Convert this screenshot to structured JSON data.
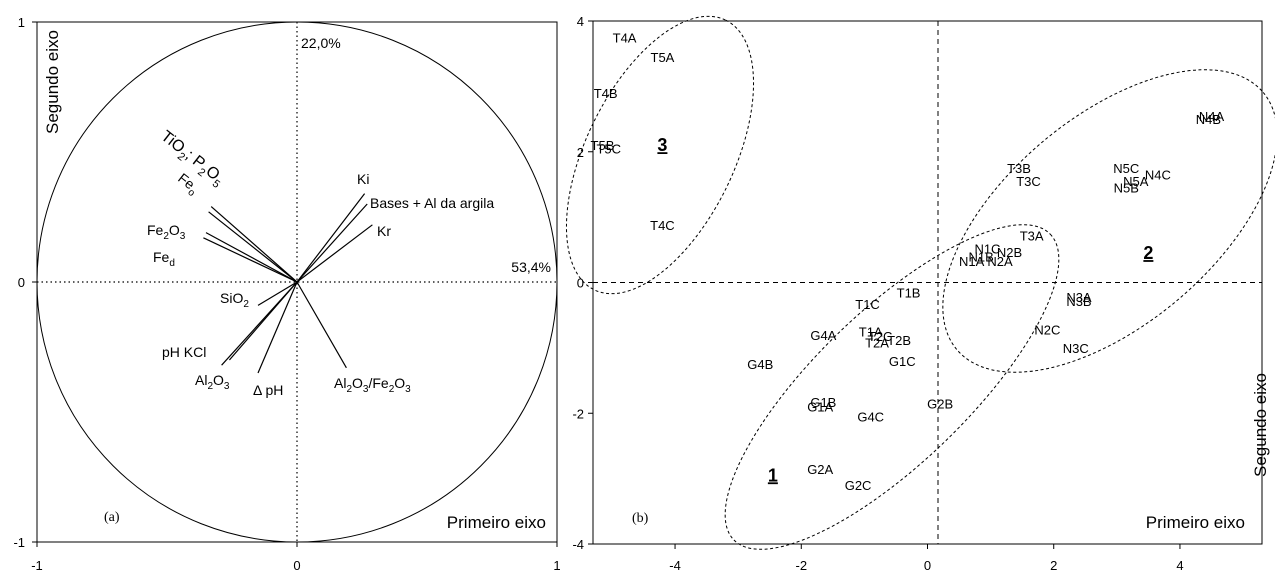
{
  "chart_data": [
    {
      "type": "correlation-circle",
      "panel_label": "(a)",
      "xlabel": "Primeiro eixo",
      "ylabel": "Segundo eixo",
      "xlim": [
        -1,
        1
      ],
      "ylim": [
        -1,
        1
      ],
      "xticks": [
        "-1",
        "0",
        "1"
      ],
      "yticks": [
        "-1",
        "0",
        "1"
      ],
      "axis1_variance": "53,4%",
      "axis2_variance": "22,0%",
      "vectors": [
        {
          "id": "ki",
          "label": "Ki",
          "x": 0.26,
          "y": 0.34
        },
        {
          "id": "bases",
          "label": "Bases + Al da argila",
          "x": 0.27,
          "y": 0.3
        },
        {
          "id": "kr",
          "label": "Kr",
          "x": 0.29,
          "y": 0.22
        },
        {
          "id": "tio2",
          "label": "TiO2; P2O5",
          "x": -0.33,
          "y": 0.29
        },
        {
          "id": "feo",
          "label": "Feo",
          "x": -0.34,
          "y": 0.27
        },
        {
          "id": "fe2o3",
          "label": "Fe2O3",
          "x": -0.35,
          "y": 0.19
        },
        {
          "id": "fed",
          "label": "Fed",
          "x": -0.36,
          "y": 0.17
        },
        {
          "id": "sio2",
          "label": "SiO2",
          "x": -0.15,
          "y": -0.09
        },
        {
          "id": "phkcl",
          "label": "pH KCl",
          "x": -0.26,
          "y": -0.3
        },
        {
          "id": "al2o3",
          "label": "Al2O3",
          "x": -0.29,
          "y": -0.32
        },
        {
          "id": "dph",
          "label": "Δ pH",
          "x": -0.15,
          "y": -0.35
        },
        {
          "id": "alfe",
          "label": "Al2O3/Fe2O3",
          "x": 0.19,
          "y": -0.33
        }
      ]
    },
    {
      "type": "scatter",
      "panel_label": "(b)",
      "xlabel": "Primeiro eixo",
      "ylabel": "Segundo eixo",
      "xlim": [
        -5.3,
        5.3
      ],
      "ylim": [
        -4,
        4
      ],
      "xticks": [
        "-4",
        "-2",
        "0",
        "2",
        "4"
      ],
      "yticks": [
        "-4",
        "-2",
        "0",
        "2",
        "4"
      ],
      "points": [
        {
          "label": "T4A",
          "x": -4.8,
          "y": 3.75
        },
        {
          "label": "T5A",
          "x": -4.2,
          "y": 3.45
        },
        {
          "label": "T4B",
          "x": -5.1,
          "y": 2.9
        },
        {
          "label": "T5B",
          "x": -5.15,
          "y": 2.1
        },
        {
          "label": "T5C",
          "x": -5.05,
          "y": 2.05
        },
        {
          "label": "T4C",
          "x": -4.2,
          "y": 0.88
        },
        {
          "label": "T3B",
          "x": 1.45,
          "y": 1.75
        },
        {
          "label": "T3C",
          "x": 1.6,
          "y": 1.55
        },
        {
          "label": "T3A",
          "x": 1.65,
          "y": 0.72
        },
        {
          "label": "N1C",
          "x": 0.95,
          "y": 0.52
        },
        {
          "label": "N1A",
          "x": 0.7,
          "y": 0.33
        },
        {
          "label": "N1B",
          "x": 0.85,
          "y": 0.4
        },
        {
          "label": "N2B",
          "x": 1.3,
          "y": 0.47
        },
        {
          "label": "N2A",
          "x": 1.15,
          "y": 0.33
        },
        {
          "label": "N5C",
          "x": 3.15,
          "y": 1.75
        },
        {
          "label": "N4C",
          "x": 3.65,
          "y": 1.65
        },
        {
          "label": "N5A",
          "x": 3.3,
          "y": 1.55
        },
        {
          "label": "N5B",
          "x": 3.15,
          "y": 1.45
        },
        {
          "label": "N4A",
          "x": 4.5,
          "y": 2.55
        },
        {
          "label": "N4B",
          "x": 4.45,
          "y": 2.5
        },
        {
          "label": "N3A",
          "x": 2.4,
          "y": -0.22
        },
        {
          "label": "N3B",
          "x": 2.4,
          "y": -0.28
        },
        {
          "label": "N2C",
          "x": 1.9,
          "y": -0.72
        },
        {
          "label": "N3C",
          "x": 2.35,
          "y": -1.0
        },
        {
          "label": "T1B",
          "x": -0.3,
          "y": -0.15
        },
        {
          "label": "T1C",
          "x": -0.95,
          "y": -0.33
        },
        {
          "label": "T1A",
          "x": -0.9,
          "y": -0.75
        },
        {
          "label": "T2C",
          "x": -0.75,
          "y": -0.82
        },
        {
          "label": "T2A",
          "x": -0.8,
          "y": -0.92
        },
        {
          "label": "T2B",
          "x": -0.45,
          "y": -0.88
        },
        {
          "label": "G4A",
          "x": -1.65,
          "y": -0.8
        },
        {
          "label": "G1C",
          "x": -0.4,
          "y": -1.2
        },
        {
          "label": "G4B",
          "x": -2.65,
          "y": -1.25
        },
        {
          "label": "G1B",
          "x": -1.65,
          "y": -1.83
        },
        {
          "label": "G1A",
          "x": -1.7,
          "y": -1.9
        },
        {
          "label": "G4C",
          "x": -0.9,
          "y": -2.05
        },
        {
          "label": "G2B",
          "x": 0.2,
          "y": -1.85
        },
        {
          "label": "G2A",
          "x": -1.7,
          "y": -2.85
        },
        {
          "label": "G2C",
          "x": -1.1,
          "y": -3.1
        }
      ],
      "groups": [
        {
          "label": "3",
          "x": -4.2,
          "y": 2.1
        },
        {
          "label": "1",
          "x": -2.45,
          "y": -2.95
        },
        {
          "label": "2",
          "x": 3.5,
          "y": 0.45
        }
      ]
    }
  ]
}
